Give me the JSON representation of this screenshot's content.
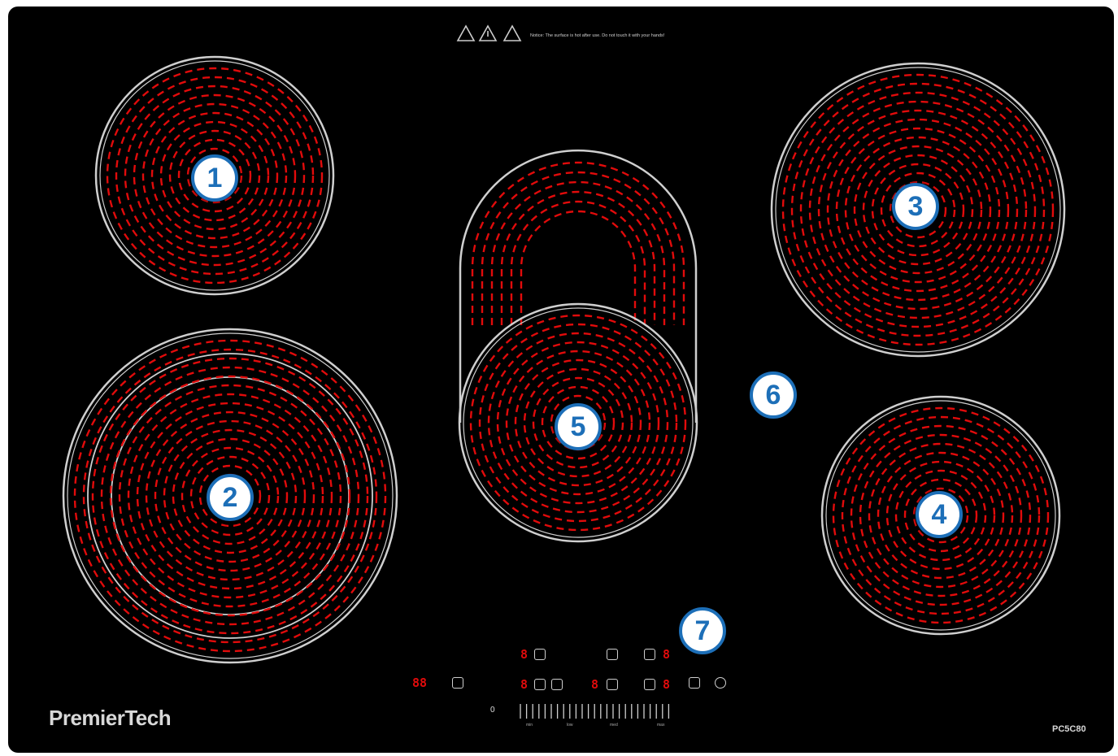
{
  "notice_text": "Notice: The surface is hot after use. Do not touch it with your hands!",
  "brand": "PremierTech",
  "model": "PC5C80",
  "zones": [
    {
      "label": "1"
    },
    {
      "label": "2"
    },
    {
      "label": "3"
    },
    {
      "label": "4"
    },
    {
      "label": "5"
    },
    {
      "label": "6"
    },
    {
      "label": "7"
    }
  ],
  "control_panel": {
    "timer_display": "88",
    "zone_display": "8",
    "slider_zero": "0",
    "slider_labels": [
      "min",
      "low",
      "med",
      "max"
    ]
  },
  "colors": {
    "glass": "#000000",
    "element": "#e10b0b",
    "ring": "#cfcfcf",
    "badge": "#1d6fb8"
  }
}
